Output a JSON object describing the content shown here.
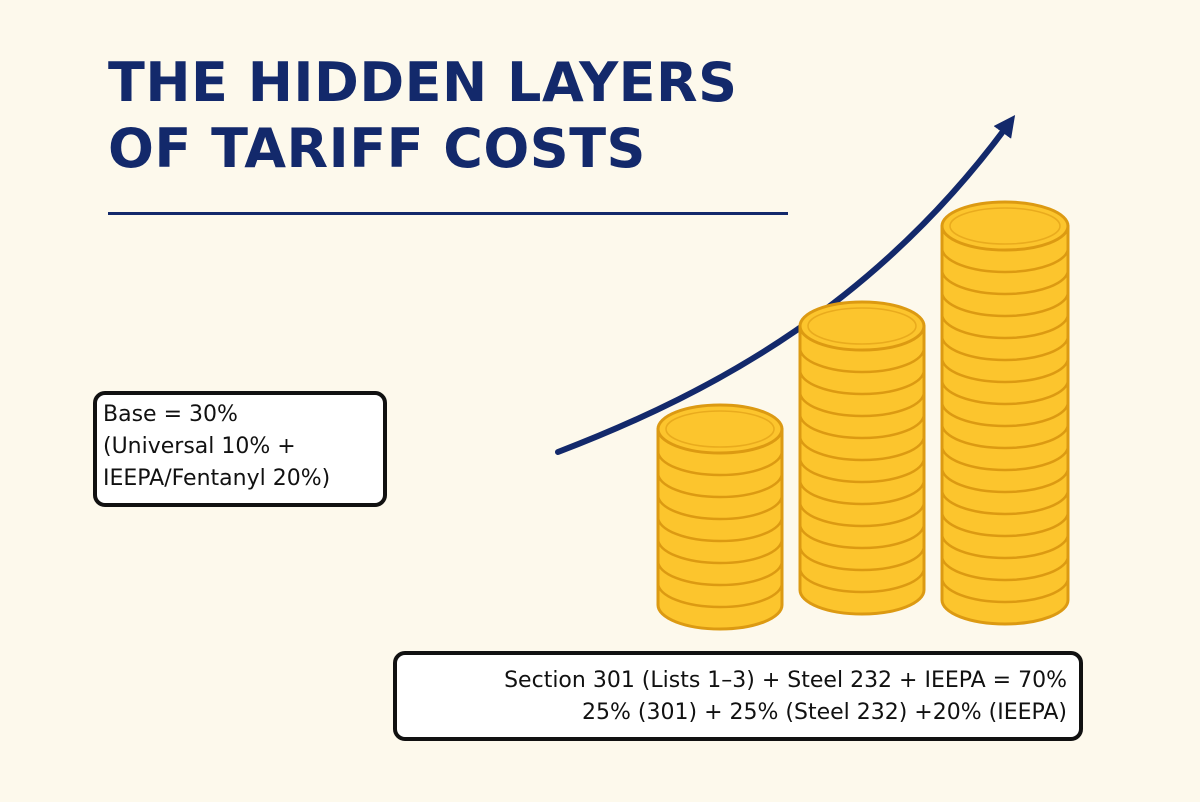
{
  "title": {
    "line1": "THE HIDDEN LAYERS",
    "line2": "OF TARIFF COSTS"
  },
  "base_label": {
    "line1": "Base = 30%",
    "line2": "(Universal 10% +",
    "line3": "IEEPA/Fentanyl 20%)"
  },
  "layers_label": {
    "line1": "Section 301 (Lists 1–3) + Steel 232 + IEEPA = 70%",
    "line2": "25% (301) + 25% (Steel 232) +20% (IEEPA)"
  },
  "illustration": {
    "coin_stacks": [
      {
        "name": "short",
        "coins": 8
      },
      {
        "name": "medium",
        "coins": 12
      },
      {
        "name": "tall",
        "coins": 17
      }
    ],
    "arrow": "rising-trend-arrow"
  },
  "colors": {
    "background": "#fdf9ec",
    "title": "#13296b",
    "arrow": "#13296b",
    "coin_fill": "#fcc52d",
    "coin_edge": "#dc9a12",
    "box_border": "#111111"
  }
}
